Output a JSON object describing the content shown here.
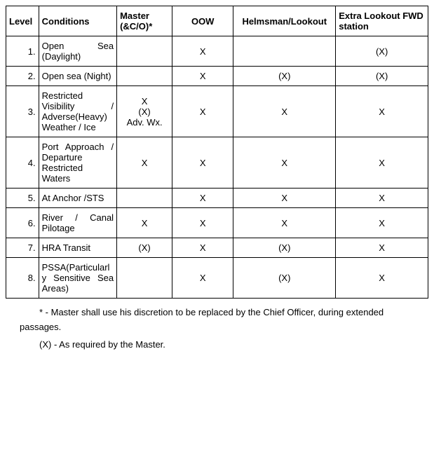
{
  "table": {
    "headers": {
      "level": "Level",
      "conditions": "Conditions",
      "master": "Master (&C/O)*",
      "oow": "OOW",
      "helmsman": "Helmsman/Lookout",
      "fwd": "Extra Lookout FWD station"
    },
    "rows": [
      {
        "num": "1.",
        "cond": "Open Sea (Daylight)",
        "master": "",
        "oow": "X",
        "helm": "",
        "fwd": "(X)"
      },
      {
        "num": "2.",
        "cond": "Open sea (Night)",
        "master": "",
        "oow": "X",
        "helm": "(X)",
        "fwd": "(X)"
      },
      {
        "num": "3.",
        "cond": "Restricted Visibility / Adverse(Heavy) Weather / Ice",
        "master": "X\n(X)\nAdv. Wx.",
        "oow": "X",
        "helm": "X",
        "fwd": "X"
      },
      {
        "num": "4.",
        "cond": "Port Approach / Departure Restricted Waters",
        "master": "X",
        "oow": "X",
        "helm": "X",
        "fwd": "X"
      },
      {
        "num": "5.",
        "cond": "At Anchor /STS",
        "master": "",
        "oow": "X",
        "helm": "X",
        "fwd": "X"
      },
      {
        "num": "6.",
        "cond": "River / Canal Pilotage",
        "master": "X",
        "oow": "X",
        "helm": "X",
        "fwd": "X"
      },
      {
        "num": "7.",
        "cond": "HRA Transit",
        "master": "(X)",
        "oow": "X",
        "helm": "(X)",
        "fwd": "X"
      },
      {
        "num": "8.",
        "cond": "PSSA(Particularly Sensitive Sea Areas)",
        "master": "",
        "oow": "X",
        "helm": "(X)",
        "fwd": "X"
      }
    ]
  },
  "footnotes": {
    "line1": "* - Master shall use his discretion to be replaced by the Chief Officer, during extended passages.",
    "line2": "(X) - As required by the Master."
  },
  "style": {
    "border_color": "#000000",
    "background": "#ffffff",
    "fontsize_body": 13
  }
}
